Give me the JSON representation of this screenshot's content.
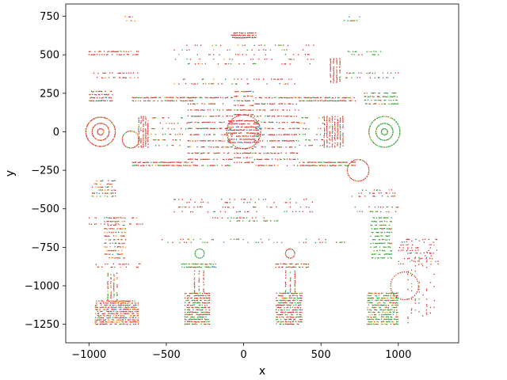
{
  "chart_data": {
    "type": "scatter",
    "title": "",
    "xlabel": "x",
    "ylabel": "y",
    "xlim": [
      -1150,
      1390
    ],
    "ylim": [
      -1370,
      830
    ],
    "xticks": [
      -1000,
      -500,
      0,
      500,
      1000
    ],
    "xtick_labels": [
      "−1000",
      "−500",
      "0",
      "500",
      "1000"
    ],
    "yticks": [
      750,
      500,
      250,
      0,
      -250,
      -500,
      -750,
      -1000,
      -1250
    ],
    "ytick_labels": [
      "750",
      "500",
      "250",
      "0",
      "−250",
      "−500",
      "−750",
      "−1000",
      "−1250"
    ],
    "grid": false,
    "legend": "none",
    "colors": {
      "series_1": "#1f77b4",
      "series_2": "#ff7f0e",
      "series_3": "#2ca02c",
      "series_4": "#d62728"
    },
    "series_color_order": [
      "series_1",
      "series_2",
      "series_3",
      "series_4"
    ],
    "point_clusters": [
      {
        "kind": "ring",
        "cx": -925,
        "cy": 0,
        "r": 95,
        "n": 70,
        "mix": [
          0.05,
          0.15,
          0.1,
          0.7
        ]
      },
      {
        "kind": "ring",
        "cx": -925,
        "cy": 0,
        "r": 55,
        "n": 40,
        "mix": [
          0.05,
          0.15,
          0.1,
          0.7
        ]
      },
      {
        "kind": "ring",
        "cx": -925,
        "cy": 0,
        "r": 20,
        "n": 16,
        "mix": [
          0.05,
          0.15,
          0.1,
          0.7
        ]
      },
      {
        "kind": "ring",
        "cx": 910,
        "cy": 0,
        "r": 100,
        "n": 70,
        "mix": [
          0.05,
          0.05,
          0.85,
          0.05
        ]
      },
      {
        "kind": "ring",
        "cx": 910,
        "cy": 0,
        "r": 55,
        "n": 40,
        "mix": [
          0.05,
          0.05,
          0.85,
          0.05
        ]
      },
      {
        "kind": "ring",
        "cx": 910,
        "cy": 0,
        "r": 20,
        "n": 16,
        "mix": [
          0.05,
          0.05,
          0.85,
          0.05
        ]
      },
      {
        "kind": "ring",
        "cx": -730,
        "cy": -50,
        "r": 55,
        "n": 36,
        "mix": [
          0.1,
          0.1,
          0.3,
          0.5
        ]
      },
      {
        "kind": "ring",
        "cx": 740,
        "cy": -250,
        "r": 70,
        "n": 44,
        "mix": [
          0.05,
          0.1,
          0.15,
          0.7
        ]
      },
      {
        "kind": "ring",
        "cx": -285,
        "cy": -790,
        "r": 30,
        "n": 20,
        "mix": [
          0.05,
          0.05,
          0.85,
          0.05
        ]
      },
      {
        "kind": "ring",
        "cx": 300,
        "cy": -790,
        "r": 30,
        "n": 20,
        "mix": [
          0.05,
          0.05,
          0.1,
          0.8
        ]
      },
      {
        "kind": "ring",
        "cx": 1040,
        "cy": -1000,
        "r": 90,
        "n": 40,
        "mix": [
          0.05,
          0.05,
          0.1,
          0.8
        ]
      },
      {
        "kind": "ring",
        "cx": 0,
        "cy": 0,
        "r": 110,
        "n": 60,
        "mix": [
          0.15,
          0.05,
          0.1,
          0.7
        ]
      },
      {
        "kind": "rows",
        "x0": -1000,
        "x1": -850,
        "y0": 200,
        "y1": 260,
        "rows": 4,
        "density": 0.7,
        "mix": [
          0.1,
          0.1,
          0.1,
          0.7
        ]
      },
      {
        "kind": "rows",
        "x0": -720,
        "x1": -330,
        "y0": 200,
        "y1": 220,
        "rows": 2,
        "density": 0.8,
        "mix": [
          0.05,
          0.1,
          0.25,
          0.6
        ]
      },
      {
        "kind": "rows",
        "x0": -720,
        "x1": -330,
        "y0": -220,
        "y1": -200,
        "rows": 2,
        "density": 0.8,
        "mix": [
          0.05,
          0.1,
          0.25,
          0.6
        ]
      },
      {
        "kind": "rows",
        "x0": -360,
        "x1": -70,
        "y0": -220,
        "y1": 220,
        "rows": 12,
        "density": 0.6,
        "mix": [
          0.05,
          0.05,
          0.15,
          0.75
        ]
      },
      {
        "kind": "rows",
        "x0": 70,
        "x1": 360,
        "y0": -220,
        "y1": 220,
        "rows": 12,
        "density": 0.6,
        "mix": [
          0.05,
          0.05,
          0.15,
          0.75
        ]
      },
      {
        "kind": "rows",
        "x0": -100,
        "x1": 100,
        "y0": -70,
        "y1": 70,
        "rows": 8,
        "density": 0.8,
        "mix": [
          0.15,
          0.05,
          0.05,
          0.75
        ]
      },
      {
        "kind": "rows",
        "x0": -60,
        "x1": 60,
        "y0": -200,
        "y1": -110,
        "rows": 4,
        "density": 0.7,
        "mix": [
          0.05,
          0.05,
          0.1,
          0.8
        ]
      },
      {
        "kind": "rows",
        "x0": -60,
        "x1": 60,
        "y0": 110,
        "y1": 260,
        "rows": 6,
        "density": 0.7,
        "mix": [
          0.05,
          0.05,
          0.1,
          0.8
        ]
      },
      {
        "kind": "rows",
        "x0": 360,
        "x1": 720,
        "y0": 200,
        "y1": 220,
        "rows": 2,
        "density": 0.8,
        "mix": [
          0.05,
          0.1,
          0.25,
          0.6
        ]
      },
      {
        "kind": "rows",
        "x0": 360,
        "x1": 720,
        "y0": -220,
        "y1": -200,
        "rows": 2,
        "density": 0.8,
        "mix": [
          0.05,
          0.1,
          0.25,
          0.6
        ]
      },
      {
        "kind": "rows",
        "x0": 780,
        "x1": 1000,
        "y0": 180,
        "y1": 250,
        "rows": 4,
        "density": 0.7,
        "mix": [
          0.05,
          0.05,
          0.7,
          0.2
        ]
      },
      {
        "kind": "cols",
        "x0": -680,
        "x1": -620,
        "y0": -100,
        "y1": 100,
        "cols": 5,
        "density": 0.8,
        "mix": [
          0.05,
          0.15,
          0.1,
          0.7
        ]
      },
      {
        "kind": "cols",
        "x0": 520,
        "x1": 640,
        "y0": -100,
        "y1": 100,
        "cols": 8,
        "density": 0.8,
        "mix": [
          0.05,
          0.1,
          0.1,
          0.75
        ]
      },
      {
        "kind": "rows",
        "x0": -600,
        "x1": -360,
        "y0": -90,
        "y1": 90,
        "rows": 6,
        "density": 0.25,
        "mix": [
          0.05,
          0.1,
          0.45,
          0.4
        ]
      },
      {
        "kind": "rows",
        "x0": 360,
        "x1": 520,
        "y0": -90,
        "y1": 90,
        "rows": 6,
        "density": 0.3,
        "mix": [
          0.05,
          0.1,
          0.45,
          0.4
        ]
      },
      {
        "kind": "cols",
        "x0": 560,
        "x1": 620,
        "y0": 320,
        "y1": 480,
        "cols": 4,
        "density": 0.8,
        "mix": [
          0.05,
          0.05,
          0.05,
          0.85
        ]
      },
      {
        "kind": "rows",
        "x0": -80,
        "x1": 80,
        "y0": 610,
        "y1": 640,
        "rows": 3,
        "density": 0.8,
        "mix": [
          0.05,
          0.05,
          0.05,
          0.85
        ]
      },
      {
        "kind": "rows",
        "x0": -1000,
        "x1": -680,
        "y0": 500,
        "y1": 520,
        "rows": 2,
        "density": 0.4,
        "mix": [
          0.05,
          0.1,
          0.05,
          0.8
        ]
      },
      {
        "kind": "rows",
        "x0": -1000,
        "x1": -680,
        "y0": 350,
        "y1": 380,
        "rows": 2,
        "density": 0.4,
        "mix": [
          0.05,
          0.2,
          0.05,
          0.7
        ]
      },
      {
        "kind": "rows",
        "x0": -780,
        "x1": -700,
        "y0": 720,
        "y1": 745,
        "rows": 2,
        "density": 0.3,
        "mix": [
          0.05,
          0.6,
          0.05,
          0.3
        ]
      },
      {
        "kind": "rows",
        "x0": 660,
        "x1": 1000,
        "y0": 350,
        "y1": 380,
        "rows": 2,
        "density": 0.35,
        "mix": [
          0.05,
          0.05,
          0.7,
          0.2
        ]
      },
      {
        "kind": "rows",
        "x0": 660,
        "x1": 900,
        "y0": 500,
        "y1": 520,
        "rows": 2,
        "density": 0.3,
        "mix": [
          0.05,
          0.05,
          0.7,
          0.2
        ]
      },
      {
        "kind": "rows",
        "x0": 650,
        "x1": 750,
        "y0": 720,
        "y1": 745,
        "rows": 2,
        "density": 0.4,
        "mix": [
          0.05,
          0.05,
          0.85,
          0.05
        ]
      },
      {
        "kind": "rows",
        "x0": -450,
        "x1": 450,
        "y0": 440,
        "y1": 560,
        "rows": 5,
        "density": 0.15,
        "mix": [
          0.05,
          0.1,
          0.25,
          0.6
        ]
      },
      {
        "kind": "rows",
        "x0": -450,
        "x1": 450,
        "y0": 310,
        "y1": 340,
        "rows": 2,
        "density": 0.2,
        "mix": [
          0.05,
          0.1,
          0.25,
          0.6
        ]
      },
      {
        "kind": "rows",
        "x0": -980,
        "x1": -830,
        "y0": -320,
        "y1": -420,
        "rows": 6,
        "density": 0.45,
        "mix": [
          0.3,
          0.25,
          0.1,
          0.35
        ]
      },
      {
        "kind": "rows",
        "x0": -900,
        "x1": -760,
        "y0": -560,
        "y1": -820,
        "rows": 12,
        "density": 0.6,
        "mix": [
          0.15,
          0.4,
          0.05,
          0.4
        ]
      },
      {
        "kind": "rows",
        "x0": -1000,
        "x1": -650,
        "y0": -560,
        "y1": -600,
        "rows": 2,
        "density": 0.3,
        "mix": [
          0.05,
          0.1,
          0.05,
          0.8
        ]
      },
      {
        "kind": "rows",
        "x0": -1000,
        "x1": -650,
        "y0": -860,
        "y1": -880,
        "rows": 2,
        "density": 0.3,
        "mix": [
          0.05,
          0.1,
          0.05,
          0.8
        ]
      },
      {
        "kind": "rows",
        "x0": -960,
        "x1": -680,
        "y0": -1100,
        "y1": -1250,
        "rows": 12,
        "density": 0.7,
        "mix": [
          0.1,
          0.3,
          0.1,
          0.5
        ]
      },
      {
        "kind": "cols",
        "x0": -880,
        "x1": -820,
        "y0": -920,
        "y1": -1100,
        "cols": 4,
        "density": 0.6,
        "mix": [
          0.05,
          0.2,
          0.3,
          0.45
        ]
      },
      {
        "kind": "rows",
        "x0": -380,
        "x1": -220,
        "y0": -1050,
        "y1": -1250,
        "rows": 14,
        "density": 0.7,
        "mix": [
          0.05,
          0.05,
          0.45,
          0.45
        ]
      },
      {
        "kind": "rows",
        "x0": -400,
        "x1": -180,
        "y0": -860,
        "y1": -880,
        "rows": 2,
        "density": 0.7,
        "mix": [
          0.05,
          0.05,
          0.8,
          0.1
        ]
      },
      {
        "kind": "cols",
        "x0": -320,
        "x1": -260,
        "y0": -900,
        "y1": -1040,
        "cols": 3,
        "density": 0.7,
        "mix": [
          0.05,
          0.05,
          0.2,
          0.7
        ]
      },
      {
        "kind": "rows",
        "x0": 210,
        "x1": 380,
        "y0": -1050,
        "y1": -1250,
        "rows": 14,
        "density": 0.7,
        "mix": [
          0.05,
          0.05,
          0.3,
          0.6
        ]
      },
      {
        "kind": "rows",
        "x0": 200,
        "x1": 420,
        "y0": -860,
        "y1": -880,
        "rows": 2,
        "density": 0.7,
        "mix": [
          0.05,
          0.05,
          0.3,
          0.6
        ]
      },
      {
        "kind": "cols",
        "x0": 270,
        "x1": 330,
        "y0": -900,
        "y1": -1040,
        "cols": 3,
        "density": 0.7,
        "mix": [
          0.05,
          0.05,
          0.2,
          0.7
        ]
      },
      {
        "kind": "rows",
        "x0": 800,
        "x1": 1000,
        "y0": -1050,
        "y1": -1250,
        "rows": 14,
        "density": 0.7,
        "mix": [
          0.05,
          0.2,
          0.6,
          0.15
        ]
      },
      {
        "kind": "rows",
        "x0": 820,
        "x1": 960,
        "y0": -560,
        "y1": -820,
        "rows": 12,
        "density": 0.6,
        "mix": [
          0.05,
          0.05,
          0.85,
          0.05
        ]
      },
      {
        "kind": "rows",
        "x0": 720,
        "x1": 1000,
        "y0": -490,
        "y1": -520,
        "rows": 2,
        "density": 0.3,
        "mix": [
          0.05,
          0.05,
          0.5,
          0.4
        ]
      },
      {
        "kind": "rows",
        "x0": 700,
        "x1": 980,
        "y0": -380,
        "y1": -420,
        "rows": 3,
        "density": 0.3,
        "mix": [
          0.1,
          0.1,
          0.2,
          0.6
        ]
      },
      {
        "kind": "rows",
        "x0": 1000,
        "x1": 1260,
        "y0": -700,
        "y1": -860,
        "rows": 10,
        "density": 0.2,
        "mix": [
          0.05,
          0.05,
          0.1,
          0.8
        ]
      },
      {
        "kind": "cols",
        "x0": 1060,
        "x1": 1230,
        "y0": -700,
        "y1": -1240,
        "cols": 8,
        "density": 0.15,
        "mix": [
          0.05,
          0.05,
          0.1,
          0.8
        ]
      },
      {
        "kind": "rows",
        "x0": -450,
        "x1": 450,
        "y0": -490,
        "y1": -520,
        "rows": 2,
        "density": 0.2,
        "mix": [
          0.15,
          0.05,
          0.1,
          0.7
        ]
      },
      {
        "kind": "rows",
        "x0": -450,
        "x1": 450,
        "y0": -440,
        "y1": -460,
        "rows": 2,
        "density": 0.15,
        "mix": [
          0.05,
          0.05,
          0.2,
          0.7
        ]
      },
      {
        "kind": "rows",
        "x0": -550,
        "x1": 650,
        "y0": -700,
        "y1": -720,
        "rows": 2,
        "density": 0.15,
        "mix": [
          0.05,
          0.05,
          0.5,
          0.4
        ]
      },
      {
        "kind": "rows",
        "x0": -200,
        "x1": 250,
        "y0": -560,
        "y1": -580,
        "rows": 2,
        "density": 0.3,
        "mix": [
          0.05,
          0.05,
          0.5,
          0.4
        ]
      }
    ]
  }
}
